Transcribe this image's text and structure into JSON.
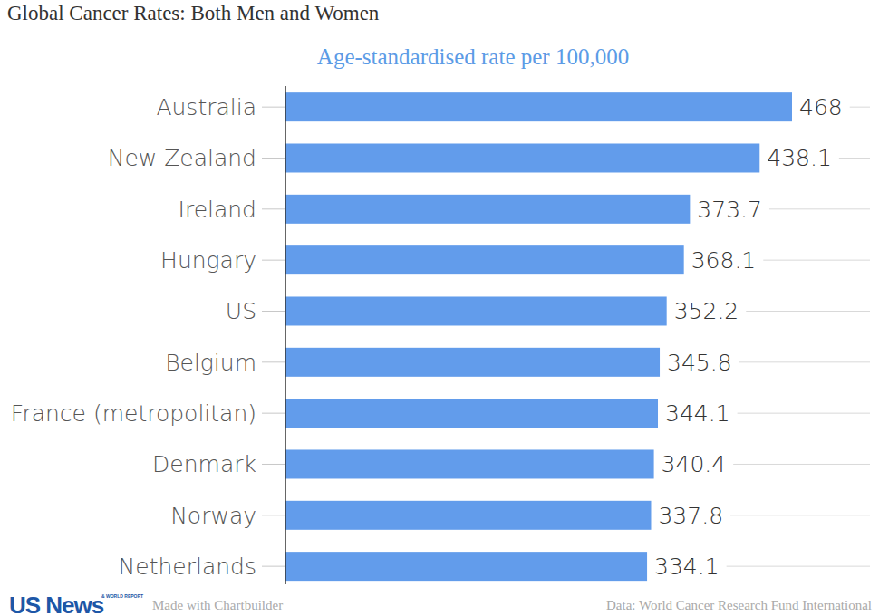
{
  "chart_data": {
    "type": "bar",
    "orientation": "horizontal",
    "title": "Global Cancer Rates: Both Men and Women",
    "subtitle": "Age-standardised rate per 100,000",
    "categories": [
      "Australia",
      "New Zealand",
      "Ireland",
      "Hungary",
      "US",
      "Belgium",
      "France (metropolitan)",
      "Denmark",
      "Norway",
      "Netherlands"
    ],
    "values": [
      468,
      438.1,
      373.7,
      368.1,
      352.2,
      345.8,
      344.1,
      340.4,
      337.8,
      334.1
    ],
    "color": "#629ceb",
    "xlim": [
      0,
      540
    ],
    "data_labels": true,
    "tick_labels": "y",
    "grid": false,
    "annotations": [
      "US News",
      "& WORLD REPORT",
      "Made with Chartbuilder",
      "Data: World Cancer Research Fund International"
    ]
  }
}
